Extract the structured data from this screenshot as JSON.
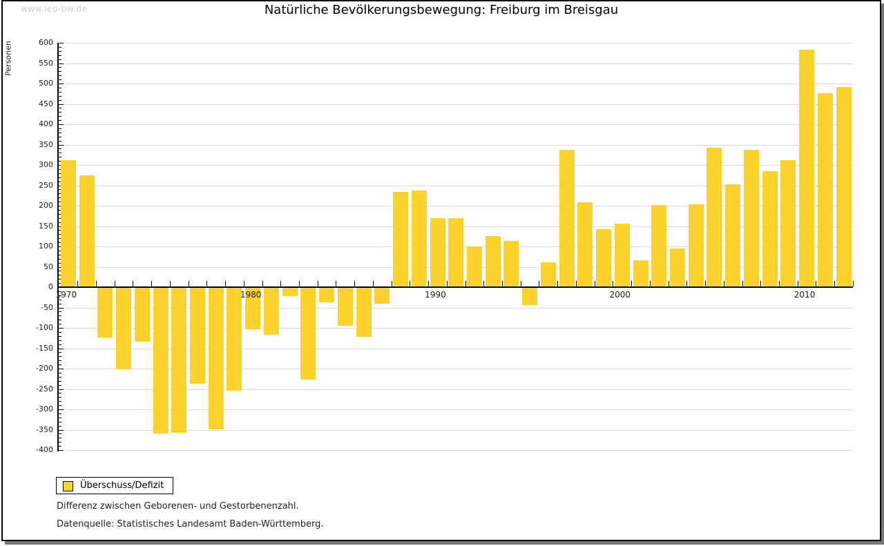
{
  "watermark": "www.leo-bw.de",
  "title": "Natürliche Bevölkerungsbewegung: Freiburg im Breisgau",
  "y_axis": {
    "label": "Personen",
    "tick_labels": [
      "600",
      "550",
      "500",
      "450",
      "400",
      "350",
      "300",
      "250",
      "200",
      "150",
      "100",
      "50",
      "0",
      "-50",
      "-100",
      "-150",
      "-200",
      "-250",
      "-300",
      "-350",
      "-400"
    ]
  },
  "x_axis": {
    "tick_labels": [
      "1970",
      "1980",
      "1990",
      "2000",
      "2010"
    ]
  },
  "legend": {
    "label": "Überschuss/Defizit"
  },
  "footnotes": [
    "Differenz zwischen Geborenen- und Gestorbenenzahl.",
    "Datenquelle: Statistisches Landesamt Baden-Württemberg."
  ],
  "colors": {
    "bar": "#FCD32C",
    "grid": "#DBDBDB",
    "axis": "#000000",
    "watermark": "#CCCCCC",
    "shadow": "#777777"
  },
  "chart_data": {
    "type": "bar",
    "title": "Natürliche Bevölkerungsbewegung: Freiburg im Breisgau",
    "xlabel": "",
    "ylabel": "Personen",
    "ylim": [
      -400,
      600
    ],
    "y_major_step": 50,
    "y_minor_step": 10,
    "grid": true,
    "legend_position": "bottom-left",
    "series_name": "Überschuss/Defizit",
    "years": [
      1970,
      1971,
      1972,
      1973,
      1974,
      1975,
      1976,
      1977,
      1978,
      1979,
      1980,
      1981,
      1982,
      1983,
      1984,
      1985,
      1986,
      1987,
      1988,
      1989,
      1990,
      1991,
      1992,
      1993,
      1994,
      1995,
      1996,
      1997,
      1998,
      1999,
      2000,
      2001,
      2002,
      2003,
      2004,
      2005,
      2006,
      2007,
      2008,
      2009,
      2010,
      2011,
      2012
    ],
    "values": [
      310,
      273,
      -122,
      -200,
      -133,
      -358,
      -356,
      -235,
      -348,
      -252,
      -102,
      -116,
      -20,
      -226,
      -36,
      -93,
      -121,
      -39,
      233,
      236,
      168,
      167,
      98,
      123,
      112,
      -42,
      60,
      335,
      207,
      140,
      155,
      65,
      200,
      93,
      202,
      340,
      250,
      336,
      283,
      310,
      581,
      475,
      490
    ]
  }
}
